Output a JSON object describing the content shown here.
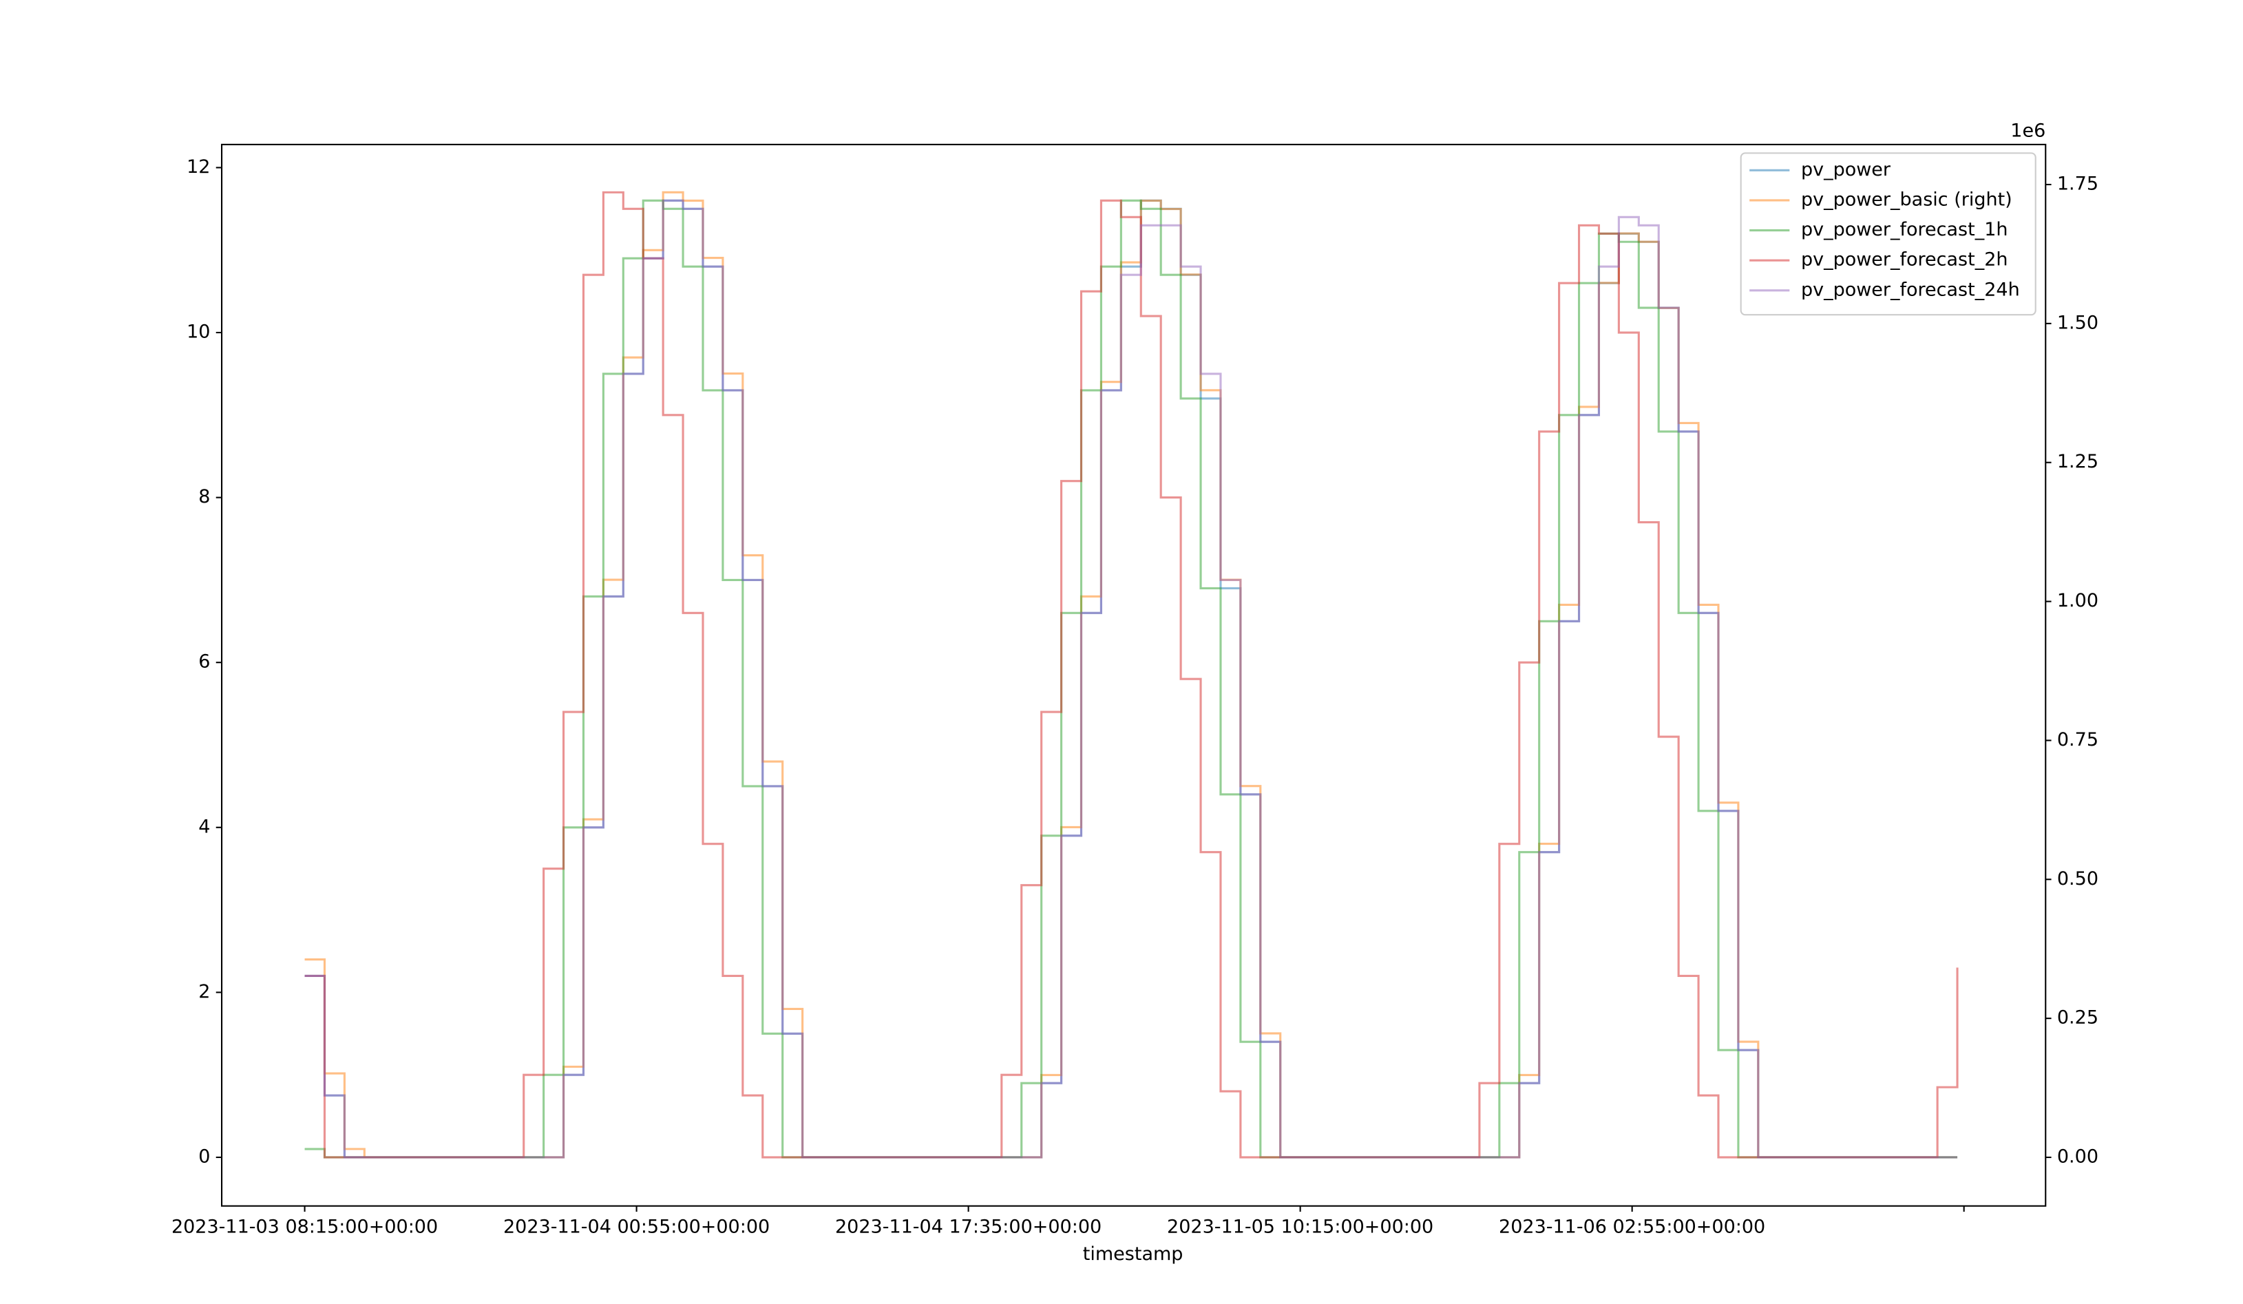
{
  "chart_data": {
    "type": "line",
    "drawstyle": "steps-post",
    "xlabel": "timestamp",
    "y2_offset_label": "1e6",
    "legend": "upper right",
    "line_alpha": 0.5,
    "x": [
      "2023-11-03 08:15:00+00:00",
      "2023-11-03 09:15:00+00:00",
      "2023-11-03 10:15:00+00:00",
      "2023-11-03 11:15:00+00:00",
      "2023-11-03 12:15:00+00:00",
      "2023-11-03 13:15:00+00:00",
      "2023-11-03 14:15:00+00:00",
      "2023-11-03 15:15:00+00:00",
      "2023-11-03 16:15:00+00:00",
      "2023-11-03 17:15:00+00:00",
      "2023-11-03 18:15:00+00:00",
      "2023-11-03 19:15:00+00:00",
      "2023-11-03 20:15:00+00:00",
      "2023-11-03 21:15:00+00:00",
      "2023-11-03 22:15:00+00:00",
      "2023-11-03 23:15:00+00:00",
      "2023-11-04 00:15:00+00:00",
      "2023-11-04 01:15:00+00:00",
      "2023-11-04 02:15:00+00:00",
      "2023-11-04 03:15:00+00:00",
      "2023-11-04 04:15:00+00:00",
      "2023-11-04 05:15:00+00:00",
      "2023-11-04 06:15:00+00:00",
      "2023-11-04 07:15:00+00:00",
      "2023-11-04 08:15:00+00:00",
      "2023-11-04 09:15:00+00:00",
      "2023-11-04 10:15:00+00:00",
      "2023-11-04 11:15:00+00:00",
      "2023-11-04 12:15:00+00:00",
      "2023-11-04 13:15:00+00:00",
      "2023-11-04 14:15:00+00:00",
      "2023-11-04 15:15:00+00:00",
      "2023-11-04 16:15:00+00:00",
      "2023-11-04 17:15:00+00:00",
      "2023-11-04 18:15:00+00:00",
      "2023-11-04 19:15:00+00:00",
      "2023-11-04 20:15:00+00:00",
      "2023-11-04 21:15:00+00:00",
      "2023-11-04 22:15:00+00:00",
      "2023-11-04 23:15:00+00:00",
      "2023-11-05 00:15:00+00:00",
      "2023-11-05 01:15:00+00:00",
      "2023-11-05 02:15:00+00:00",
      "2023-11-05 03:15:00+00:00",
      "2023-11-05 04:15:00+00:00",
      "2023-11-05 05:15:00+00:00",
      "2023-11-05 06:15:00+00:00",
      "2023-11-05 07:15:00+00:00",
      "2023-11-05 08:15:00+00:00",
      "2023-11-05 09:15:00+00:00",
      "2023-11-05 10:15:00+00:00",
      "2023-11-05 11:15:00+00:00",
      "2023-11-05 12:15:00+00:00",
      "2023-11-05 13:15:00+00:00",
      "2023-11-05 14:15:00+00:00",
      "2023-11-05 15:15:00+00:00",
      "2023-11-05 16:15:00+00:00",
      "2023-11-05 17:15:00+00:00",
      "2023-11-05 18:15:00+00:00",
      "2023-11-05 19:15:00+00:00",
      "2023-11-05 20:15:00+00:00",
      "2023-11-05 21:15:00+00:00",
      "2023-11-05 22:15:00+00:00",
      "2023-11-05 23:15:00+00:00",
      "2023-11-06 00:15:00+00:00",
      "2023-11-06 01:15:00+00:00",
      "2023-11-06 02:15:00+00:00",
      "2023-11-06 03:15:00+00:00",
      "2023-11-06 04:15:00+00:00",
      "2023-11-06 05:15:00+00:00",
      "2023-11-06 06:15:00+00:00",
      "2023-11-06 07:15:00+00:00",
      "2023-11-06 08:15:00+00:00",
      "2023-11-06 09:15:00+00:00",
      "2023-11-06 10:15:00+00:00",
      "2023-11-06 11:15:00+00:00",
      "2023-11-06 12:15:00+00:00",
      "2023-11-06 13:15:00+00:00",
      "2023-11-06 14:15:00+00:00",
      "2023-11-06 15:15:00+00:00",
      "2023-11-06 16:15:00+00:00",
      "2023-11-06 17:15:00+00:00",
      "2023-11-06 18:15:00+00:00",
      "2023-11-06 19:15:00+00:00"
    ],
    "xlim": [
      "2023-11-03 04:05:00+00:00",
      "2023-11-06 23:41:00+00:00"
    ],
    "xticks": [
      "2023-11-03 08:15:00+00:00",
      "2023-11-04 00:55:00+00:00",
      "2023-11-04 17:35:00+00:00",
      "2023-11-05 10:15:00+00:00",
      "2023-11-06 02:55:00+00:00",
      {
        "value": "2023-11-06 19:35:00+00:00",
        "label": null
      }
    ],
    "ylim": [
      -0.59,
      12.28
    ],
    "yticks": [
      0,
      2,
      4,
      6,
      8,
      10,
      12
    ],
    "y2lim": [
      -87500,
      1822000
    ],
    "y2ticks": [
      {
        "value": 0,
        "label": "0.00"
      },
      {
        "value": 250000,
        "label": "0.25"
      },
      {
        "value": 500000,
        "label": "0.50"
      },
      {
        "value": 750000,
        "label": "0.75"
      },
      {
        "value": 1000000,
        "label": "1.00"
      },
      {
        "value": 1250000,
        "label": "1.25"
      },
      {
        "value": 1500000,
        "label": "1.50"
      },
      {
        "value": 1750000,
        "label": "1.75"
      }
    ],
    "series": [
      {
        "name": "pv_power",
        "color": "#1f77b4",
        "values": [
          2.2,
          0.75,
          0,
          0,
          0,
          0,
          0,
          0,
          0,
          0,
          0,
          0,
          0,
          1.0,
          4.0,
          6.8,
          9.5,
          10.9,
          11.6,
          11.5,
          10.8,
          9.3,
          7.0,
          4.5,
          1.5,
          0,
          0,
          0,
          0,
          0,
          0,
          0,
          0,
          0,
          0,
          0,
          0,
          0.9,
          3.9,
          6.6,
          9.3,
          10.8,
          11.6,
          11.5,
          10.7,
          9.2,
          6.9,
          4.4,
          1.4,
          0,
          0,
          0,
          0,
          0,
          0,
          0,
          0,
          0,
          0,
          0,
          0,
          0.9,
          3.7,
          6.5,
          9.0,
          10.6,
          11.2,
          11.1,
          10.3,
          8.8,
          6.6,
          4.2,
          1.3,
          0,
          0,
          0,
          0,
          0,
          0,
          0,
          0,
          0,
          0,
          0
        ]
      },
      {
        "name": "pv_power_basic (right)",
        "color": "#ff7f0e",
        "axis": "y2",
        "values": [
          356000,
          151000,
          15000,
          0,
          0,
          0,
          0,
          0,
          0,
          0,
          0,
          0,
          0,
          163000,
          608000,
          1039000,
          1439000,
          1632000,
          1736000,
          1721000,
          1618000,
          1410000,
          1083000,
          712000,
          267000,
          0,
          0,
          0,
          0,
          0,
          0,
          0,
          0,
          0,
          0,
          0,
          0,
          148000,
          594000,
          1009000,
          1395000,
          1610000,
          1721000,
          1706000,
          1588000,
          1380000,
          1039000,
          668000,
          223000,
          0,
          0,
          0,
          0,
          0,
          0,
          0,
          0,
          0,
          0,
          0,
          0,
          148000,
          564000,
          994000,
          1350000,
          1573000,
          1662000,
          1647000,
          1528000,
          1321000,
          994000,
          638000,
          208000,
          0,
          0,
          0,
          0,
          0,
          0,
          0,
          0,
          0,
          0,
          0
        ]
      },
      {
        "name": "pv_power_forecast_1h",
        "color": "#2ca02c",
        "values": [
          0.1,
          0,
          0,
          0,
          0,
          0,
          0,
          0,
          0,
          0,
          0,
          0,
          1.0,
          4.0,
          6.8,
          9.5,
          10.9,
          11.6,
          11.5,
          10.8,
          9.3,
          7.0,
          4.5,
          1.5,
          0,
          0,
          0,
          0,
          0,
          0,
          0,
          0,
          0,
          0,
          0,
          0,
          0.9,
          3.9,
          6.6,
          9.3,
          10.8,
          11.6,
          11.5,
          10.7,
          9.2,
          6.9,
          4.4,
          1.4,
          0,
          0,
          0,
          0,
          0,
          0,
          0,
          0,
          0,
          0,
          0,
          0,
          0.9,
          3.7,
          6.5,
          9.0,
          10.6,
          11.2,
          11.1,
          10.3,
          8.8,
          6.6,
          4.2,
          1.3,
          0,
          0,
          0,
          0,
          0,
          0,
          0,
          0,
          0,
          0,
          0,
          0
        ]
      },
      {
        "name": "pv_power_forecast_2h",
        "color": "#d62728",
        "values": [
          2.2,
          0,
          0,
          0,
          0,
          0,
          0,
          0,
          0,
          0,
          0,
          1.0,
          3.5,
          5.4,
          10.7,
          11.7,
          11.5,
          10.9,
          9.0,
          6.6,
          3.8,
          2.2,
          0.75,
          0,
          0,
          0,
          0,
          0,
          0,
          0,
          0,
          0,
          0,
          0,
          0,
          1.0,
          3.3,
          5.4,
          8.2,
          10.5,
          11.6,
          11.4,
          10.2,
          8.0,
          5.8,
          3.7,
          0.8,
          0,
          0,
          0,
          0,
          0,
          0,
          0,
          0,
          0,
          0,
          0,
          0,
          0.9,
          3.8,
          6.0,
          8.8,
          10.6,
          11.3,
          11.2,
          10.0,
          7.7,
          5.1,
          2.2,
          0.75,
          0,
          0,
          0,
          0,
          0,
          0,
          0,
          0,
          0,
          0,
          0,
          0.85,
          2.3
        ]
      },
      {
        "name": "pv_power_forecast_24h",
        "color": "#9467bd",
        "values": [
          2.2,
          0.75,
          0,
          0,
          0,
          0,
          0,
          0,
          0,
          0,
          0,
          0,
          0,
          1.0,
          4.0,
          6.8,
          9.5,
          10.9,
          11.6,
          11.5,
          10.8,
          9.3,
          7.0,
          4.5,
          1.5,
          0,
          0,
          0,
          0,
          0,
          0,
          0,
          0,
          0,
          0,
          0,
          0,
          0.9,
          3.9,
          6.6,
          9.3,
          10.7,
          11.3,
          11.3,
          10.8,
          9.5,
          7.0,
          4.4,
          1.4,
          0,
          0,
          0,
          0,
          0,
          0,
          0,
          0,
          0,
          0,
          0,
          0,
          0.9,
          3.7,
          6.5,
          9.0,
          10.8,
          11.4,
          11.3,
          10.3,
          8.8,
          6.6,
          4.2,
          1.3,
          0,
          0,
          0,
          0,
          0,
          0,
          0,
          0,
          0,
          0,
          0
        ]
      }
    ]
  }
}
